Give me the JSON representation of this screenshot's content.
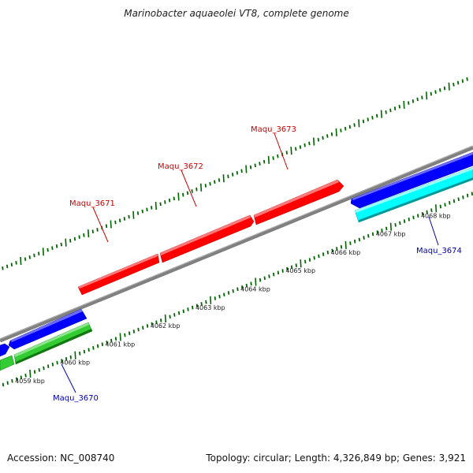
{
  "title": "Marinobacter aquaeolei VT8, complete genome",
  "footer": {
    "accession": "Accession: NC_008740",
    "summary": "Topology: circular; Length: 4,326,849 bp; Genes: 3,921"
  },
  "colors": {
    "backbone": "#808080",
    "forward_gene": "#ff0000",
    "reverse_gene": "#0000ff",
    "cyan_gene": "#00ffff",
    "green_gene": "#33cc33",
    "tick": "#006600",
    "label_forward": "#cc0000",
    "label_reverse": "#0000aa"
  },
  "axis": {
    "ticks": [
      {
        "kbp": 4059,
        "label": "4059 kbp"
      },
      {
        "kbp": 4060,
        "label": "4060 kbp"
      },
      {
        "kbp": 4061,
        "label": "4061 kbp"
      },
      {
        "kbp": 4062,
        "label": "4062 kbp"
      },
      {
        "kbp": 4063,
        "label": "4063 kbp"
      },
      {
        "kbp": 4064,
        "label": "4064 kbp"
      },
      {
        "kbp": 4065,
        "label": "4065 kbp"
      },
      {
        "kbp": 4066,
        "label": "4066 kbp"
      },
      {
        "kbp": 4067,
        "label": "4067 kbp"
      },
      {
        "kbp": 4068,
        "label": "4068 kbp"
      }
    ]
  },
  "genes": [
    {
      "name": "Maqu_3670",
      "strand": "reverse",
      "track": "green",
      "labeled": true
    },
    {
      "name": "Maqu_3671",
      "strand": "forward",
      "track": "red",
      "labeled": true
    },
    {
      "name": "Maqu_3672",
      "strand": "forward",
      "track": "red",
      "labeled": true
    },
    {
      "name": "Maqu_3673",
      "strand": "forward",
      "track": "red",
      "labeled": true
    },
    {
      "name": "Maqu_3674",
      "strand": "reverse",
      "track": "cyan",
      "labeled": true
    }
  ]
}
